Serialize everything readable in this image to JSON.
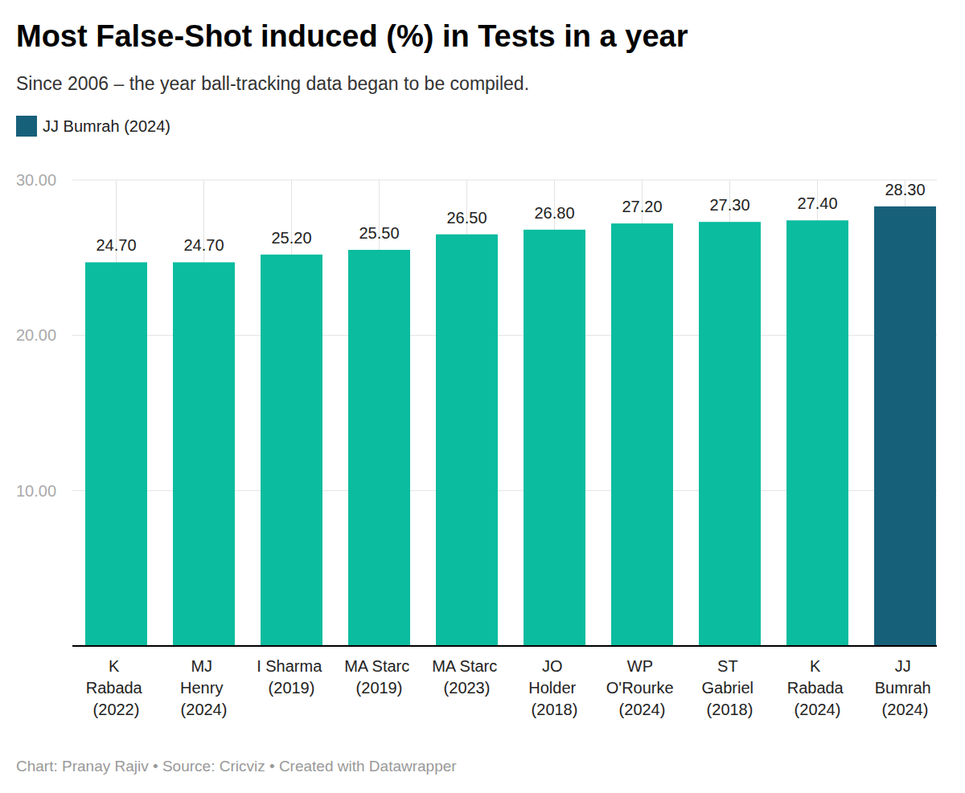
{
  "chart_data": {
    "type": "bar",
    "title": "Most False-Shot induced (%) in Tests in a year",
    "subtitle": "Since 2006 – the year ball-tracking data began to be compiled.",
    "caption": "Chart: Pranay Rajiv • Source: Cricviz • Created with Datawrapper",
    "highlight": {
      "name": "JJ Bumrah (2024)",
      "color": "#17607a"
    },
    "categories": [
      "K Rabada (2022)",
      "MJ Henry (2024)",
      "I Sharma (2019)",
      "MA Starc (2019)",
      "MA Starc (2023)",
      "JO Holder (2018)",
      "WP O'Rourke (2024)",
      "ST Gabriel (2018)",
      "K Rabada (2024)",
      "JJ Bumrah (2024)"
    ],
    "values": [
      24.7,
      24.7,
      25.2,
      25.5,
      26.5,
      26.8,
      27.2,
      27.3,
      27.4,
      28.3
    ],
    "value_labels": [
      "24.70",
      "24.70",
      "25.20",
      "25.50",
      "26.50",
      "26.80",
      "27.20",
      "27.30",
      "27.40",
      "28.30"
    ],
    "colors": [
      "#0bbc9f",
      "#0bbc9f",
      "#0bbc9f",
      "#0bbc9f",
      "#0bbc9f",
      "#0bbc9f",
      "#0bbc9f",
      "#0bbc9f",
      "#0bbc9f",
      "#17607a"
    ],
    "ylim": [
      0,
      30
    ],
    "yticks": [
      {
        "value": 10,
        "label": "10.00"
      },
      {
        "value": 20,
        "label": "20.00"
      },
      {
        "value": 30,
        "label": "30.00"
      }
    ],
    "grid": true,
    "data_labels": true
  }
}
